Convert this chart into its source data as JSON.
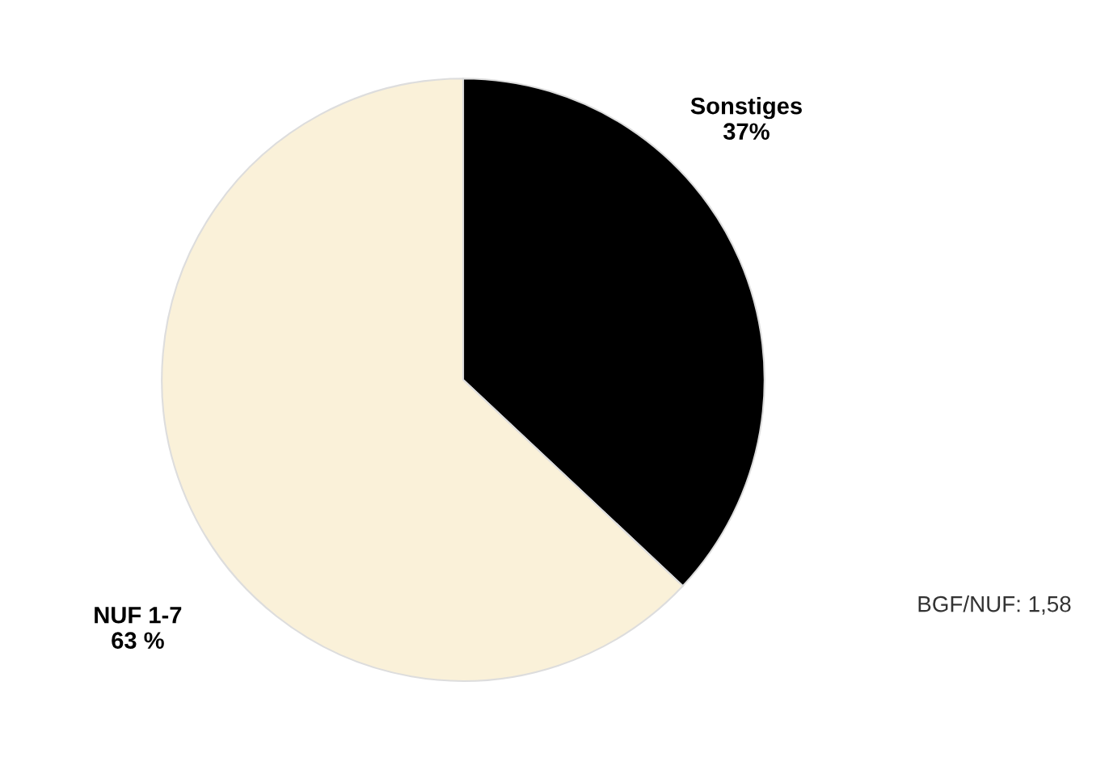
{
  "chart_data": {
    "type": "pie",
    "categories": [
      "Sonstiges",
      "NUF 1-7"
    ],
    "values": [
      37,
      63
    ],
    "value_labels": [
      "37%",
      "63 %"
    ],
    "colors": [
      "#000000",
      "#faf1d9"
    ],
    "annotations": [
      "BGF/NUF: 1,58"
    ]
  }
}
